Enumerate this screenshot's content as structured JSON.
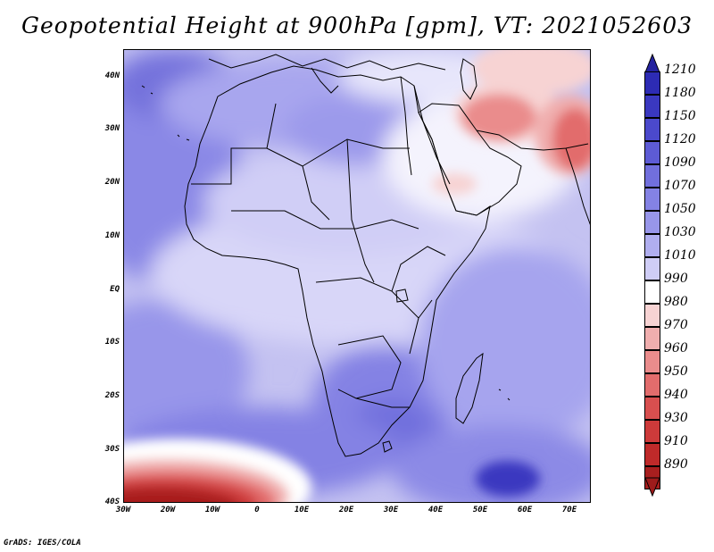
{
  "title": "Geopotential Height at 900hPa [gpm], VT: 2021052603",
  "credit": "GrADS: IGES/COLA",
  "map": {
    "projection": "lat-lon",
    "lat_range": [
      -40,
      45
    ],
    "lon_range": [
      -30,
      75
    ],
    "lat_labels": [
      "40N",
      "30N",
      "20N",
      "10N",
      "EQ",
      "10S",
      "20S",
      "30S",
      "40S"
    ],
    "lon_labels": [
      "30W",
      "20W",
      "10W",
      "0",
      "10E",
      "20E",
      "30E",
      "40E",
      "50E",
      "60E",
      "70E"
    ]
  },
  "colorbar": {
    "levels": [
      "1210",
      "1180",
      "1150",
      "1120",
      "1090",
      "1070",
      "1050",
      "1030",
      "1010",
      "990",
      "980",
      "970",
      "960",
      "950",
      "940",
      "930",
      "910",
      "890"
    ],
    "colors": [
      "#2d2bb4",
      "#3a38c0",
      "#4b49cc",
      "#5d5bd5",
      "#716fdd",
      "#8482e4",
      "#9896ea",
      "#b0aeef",
      "#cfcdf6",
      "#ffffff",
      "#f7d3d3",
      "#f0aeae",
      "#ea8c8c",
      "#e26c6c",
      "#d84f4f",
      "#cd3a3a",
      "#bf2a2a",
      "#a81f1f"
    ]
  }
}
